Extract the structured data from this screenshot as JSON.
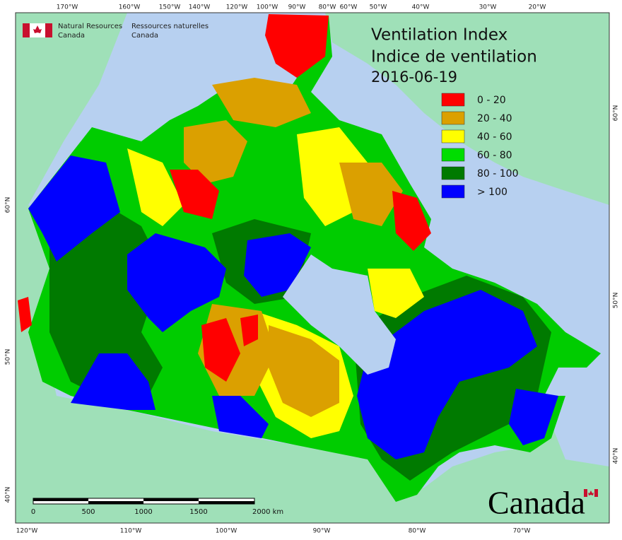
{
  "header": {
    "org_en": [
      "Natural Resources",
      "Canada"
    ],
    "org_fr": [
      "Ressources naturelles",
      "Canada"
    ]
  },
  "title": [
    "Ventilation Index",
    "Indice de ventilation"
  ],
  "date": "2016-06-19",
  "legend": [
    {
      "label": "0 - 20",
      "color": "#ff0000"
    },
    {
      "label": "20 - 40",
      "color": "#dba000"
    },
    {
      "label": "40 - 60",
      "color": "#ffff00"
    },
    {
      "label": "60 - 80",
      "color": "#00dd00"
    },
    {
      "label": "80 - 100",
      "color": "#007a00"
    },
    {
      "label": "> 100",
      "color": "#0000ff"
    }
  ],
  "graticule": {
    "top": [
      "170°W",
      "160°W",
      "150°W",
      "140°W",
      "120°W",
      "100°W",
      "90°W",
      "80°W",
      "60°W",
      "50°W",
      "40°W",
      "30°W",
      "20°W"
    ],
    "bottom": [
      "120°W",
      "110°W",
      "100°W",
      "90°W",
      "80°W",
      "70°W"
    ],
    "left": [
      "60°N",
      "50°N",
      "40°N"
    ],
    "right": [
      "60°N",
      "50°N",
      "40°N"
    ]
  },
  "scale": {
    "ticks": [
      "0",
      "500",
      "1000",
      "1500",
      "2000 km"
    ]
  },
  "wordmark": "Canada"
}
